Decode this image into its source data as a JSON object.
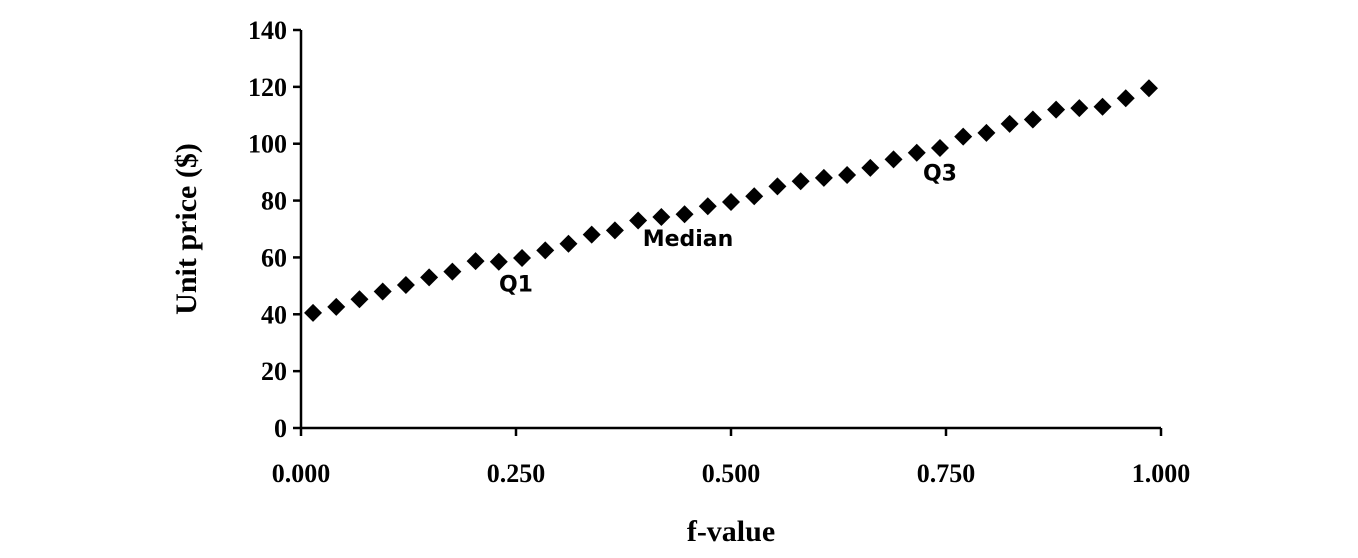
{
  "chart_data": {
    "type": "scatter",
    "xlabel": "f-value",
    "ylabel": "Unit price ($)",
    "xlim": [
      0,
      1
    ],
    "ylim": [
      0,
      140
    ],
    "xticks": [
      "0.000",
      "0.250",
      "0.500",
      "0.750",
      "1.000"
    ],
    "yticks": [
      "0",
      "20",
      "40",
      "60",
      "80",
      "100",
      "120",
      "140"
    ],
    "grid": false,
    "marker": "diamond",
    "color": "#000000",
    "points": [
      {
        "x": 0.014,
        "y": 40.5
      },
      {
        "x": 0.041,
        "y": 42.6
      },
      {
        "x": 0.068,
        "y": 45.3
      },
      {
        "x": 0.095,
        "y": 48.0
      },
      {
        "x": 0.122,
        "y": 50.3
      },
      {
        "x": 0.149,
        "y": 53.0
      },
      {
        "x": 0.176,
        "y": 55.0
      },
      {
        "x": 0.203,
        "y": 58.7
      },
      {
        "x": 0.23,
        "y": 58.5
      },
      {
        "x": 0.257,
        "y": 59.8
      },
      {
        "x": 0.284,
        "y": 62.5
      },
      {
        "x": 0.311,
        "y": 64.8
      },
      {
        "x": 0.338,
        "y": 68.0
      },
      {
        "x": 0.365,
        "y": 69.5
      },
      {
        "x": 0.392,
        "y": 73.0
      },
      {
        "x": 0.419,
        "y": 74.2
      },
      {
        "x": 0.446,
        "y": 75.2
      },
      {
        "x": 0.473,
        "y": 78.0
      },
      {
        "x": 0.5,
        "y": 79.5
      },
      {
        "x": 0.527,
        "y": 81.5
      },
      {
        "x": 0.554,
        "y": 85.0
      },
      {
        "x": 0.581,
        "y": 86.8
      },
      {
        "x": 0.608,
        "y": 88.0
      },
      {
        "x": 0.635,
        "y": 89.0
      },
      {
        "x": 0.662,
        "y": 91.5
      },
      {
        "x": 0.689,
        "y": 94.5
      },
      {
        "x": 0.716,
        "y": 96.8
      },
      {
        "x": 0.743,
        "y": 98.5
      },
      {
        "x": 0.77,
        "y": 102.5
      },
      {
        "x": 0.797,
        "y": 103.8
      },
      {
        "x": 0.824,
        "y": 107.0
      },
      {
        "x": 0.851,
        "y": 108.5
      },
      {
        "x": 0.878,
        "y": 112.0
      },
      {
        "x": 0.905,
        "y": 112.5
      },
      {
        "x": 0.932,
        "y": 113.0
      },
      {
        "x": 0.959,
        "y": 116.0
      },
      {
        "x": 0.986,
        "y": 119.5
      }
    ],
    "annotations": [
      {
        "text": "Q1",
        "x": 0.25,
        "y": 48
      },
      {
        "text": "Median",
        "x": 0.45,
        "y": 64
      },
      {
        "text": "Q3",
        "x": 0.743,
        "y": 87
      }
    ]
  }
}
